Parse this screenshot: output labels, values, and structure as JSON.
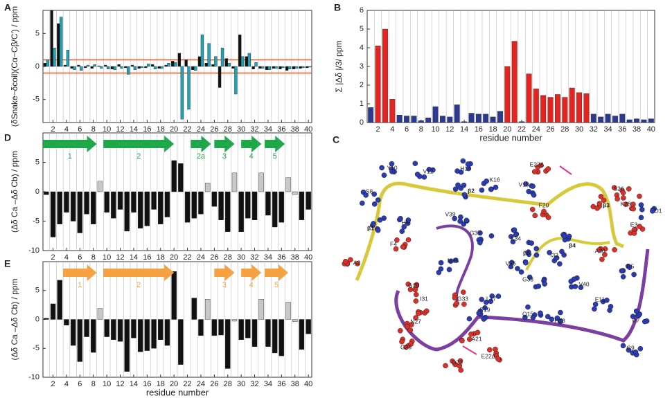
{
  "chart_data": [
    {
      "type": "bar",
      "panel_label": "A",
      "ylabel": "(δSnake−δcoil)(Cα−Cβ/C′) / ppm",
      "x": [
        1,
        2,
        3,
        4,
        5,
        6,
        7,
        8,
        9,
        10,
        11,
        12,
        13,
        14,
        15,
        16,
        17,
        18,
        19,
        20,
        21,
        22,
        23,
        24,
        25,
        26,
        27,
        28,
        29,
        30,
        31,
        32,
        33,
        34,
        35,
        36,
        37,
        38,
        39,
        40
      ],
      "xlim": [
        0.5,
        40.5
      ],
      "xticks": [
        2,
        4,
        6,
        8,
        10,
        12,
        14,
        16,
        18,
        20,
        22,
        24,
        26,
        28,
        30,
        32,
        34,
        36,
        38,
        40
      ],
      "ylim": [
        -8.5,
        8.5
      ],
      "yticks": [
        -5,
        0,
        5
      ],
      "reference_lines": {
        "values": [
          1,
          -1
        ],
        "color": "#e8612c"
      },
      "series": [
        {
          "color": "#111111",
          "values": [
            0.5,
            8.5,
            6.5,
            0.2,
            -0.3,
            0.2,
            -0.2,
            -0.3,
            0.1,
            0.2,
            -0.4,
            0.3,
            -0.2,
            0.2,
            -0.3,
            -0.2,
            0.3,
            -0.3,
            0.2,
            0.8,
            2,
            1,
            -0.5,
            1.5,
            0.5,
            0.3,
            -3.2,
            1.2,
            -0.3,
            4.8,
            1.5,
            -0.4,
            -0.3,
            -0.5,
            -0.3,
            -0.4,
            -0.6,
            -0.4,
            -0.3,
            -0.2
          ]
        },
        {
          "color": "#1fa3b5",
          "values": [
            1,
            2.8,
            7.5,
            2.5,
            -0.5,
            -0.6,
            0.2,
            0.3,
            -0.3,
            -0.4,
            -0.5,
            -0.3,
            -1.2,
            -0.5,
            -0.2,
            0.4,
            -0.4,
            -0.3,
            0.5,
            0.6,
            -8,
            -6.5,
            -0.6,
            4.8,
            3.5,
            1.5,
            2.8,
            0.5,
            -4.2,
            1.5,
            2,
            0.6,
            -0.3,
            -0.5,
            -0.3,
            -0.2,
            -0.4,
            -0.3,
            -0.2,
            -0.1
          ]
        }
      ]
    },
    {
      "type": "bar",
      "panel_label": "B",
      "ylabel": "Σ |Δδ |/3/ ppm",
      "xlabel": "residue number",
      "x": [
        1,
        2,
        3,
        4,
        5,
        6,
        7,
        8,
        9,
        10,
        11,
        12,
        13,
        14,
        15,
        16,
        17,
        18,
        19,
        20,
        21,
        22,
        23,
        24,
        25,
        26,
        27,
        28,
        29,
        30,
        31,
        32,
        33,
        34,
        35,
        36,
        37,
        38,
        39,
        40
      ],
      "xlim": [
        0.5,
        40.5
      ],
      "xticks": [
        2,
        4,
        6,
        8,
        10,
        12,
        14,
        16,
        18,
        20,
        22,
        24,
        26,
        28,
        30,
        32,
        34,
        36,
        38,
        40
      ],
      "ylim": [
        0,
        6
      ],
      "yticks": [
        0,
        1,
        2,
        3,
        4,
        5,
        6
      ],
      "values": [
        0.8,
        4.1,
        5.0,
        1.25,
        0.4,
        0.35,
        0.35,
        0.1,
        0.25,
        0.85,
        0.35,
        0.3,
        0.95,
        0.05,
        0.5,
        0.45,
        0.45,
        0.3,
        0.6,
        3.0,
        4.35,
        0.05,
        2.6,
        1.8,
        1.45,
        1.35,
        1.5,
        1.35,
        1.85,
        1.6,
        1.55,
        0.45,
        0.3,
        0.45,
        0.35,
        0.45,
        0.15,
        0.2,
        0.15,
        0.2
      ],
      "colors": [
        "#2b3990",
        "#e52421",
        "#e52421",
        "#e52421",
        "#2b3990",
        "#2b3990",
        "#2b3990",
        "#2b3990",
        "#2b3990",
        "#2b3990",
        "#2b3990",
        "#2b3990",
        "#2b3990",
        "#2b3990",
        "#2b3990",
        "#2b3990",
        "#2b3990",
        "#2b3990",
        "#2b3990",
        "#e52421",
        "#e52421",
        "#2b3990",
        "#e52421",
        "#e52421",
        "#e52421",
        "#e52421",
        "#e52421",
        "#e52421",
        "#e52421",
        "#e52421",
        "#e52421",
        "#2b3990",
        "#2b3990",
        "#2b3990",
        "#2b3990",
        "#2b3990",
        "#2b3990",
        "#2b3990",
        "#2b3990",
        "#2b3990"
      ]
    },
    {
      "type": "bar",
      "panel_label": "D",
      "ylabel": "(Δδ Ca –Δδ Cb) / ppm",
      "x": [
        1,
        2,
        3,
        4,
        5,
        6,
        7,
        8,
        9,
        10,
        11,
        12,
        13,
        14,
        15,
        16,
        17,
        18,
        19,
        20,
        21,
        22,
        23,
        24,
        25,
        26,
        27,
        28,
        29,
        30,
        31,
        32,
        33,
        34,
        35,
        36,
        37,
        38,
        39,
        40
      ],
      "xlim": [
        0.5,
        40.5
      ],
      "xticks": [
        2,
        4,
        6,
        8,
        10,
        12,
        14,
        16,
        18,
        20,
        22,
        24,
        26,
        28,
        30,
        32,
        34,
        36,
        38,
        40
      ],
      "ylim": [
        -10,
        10
      ],
      "yticks": [
        -10,
        -5,
        0,
        5
      ],
      "values": [
        -0.5,
        -7.7,
        -5.5,
        -3.5,
        -5.0,
        -7.0,
        -3.8,
        -5.5,
        1.8,
        -3.5,
        -4.5,
        -3.0,
        -6.7,
        -3.5,
        -6.2,
        -5.8,
        -3.0,
        -5.5,
        -4.3,
        5.3,
        4.8,
        -5.2,
        -4.5,
        -3.8,
        1.5,
        -2.5,
        -4.8,
        -6.8,
        3.2,
        -6.8,
        -4.5,
        -4.8,
        3.2,
        -4.0,
        -6.0,
        -5.2,
        2.4,
        -0.5,
        -4.8,
        -3.0
      ],
      "colors": [
        "#111111",
        "#111111",
        "#111111",
        "#111111",
        "#111111",
        "#111111",
        "#111111",
        "#111111",
        "#c8c8c8",
        "#111111",
        "#111111",
        "#111111",
        "#111111",
        "#111111",
        "#111111",
        "#111111",
        "#111111",
        "#111111",
        "#111111",
        "#111111",
        "#111111",
        "#111111",
        "#111111",
        "#111111",
        "#c8c8c8",
        "#111111",
        "#111111",
        "#111111",
        "#c8c8c8",
        "#111111",
        "#111111",
        "#111111",
        "#c8c8c8",
        "#111111",
        "#111111",
        "#111111",
        "#c8c8c8",
        "#c8c8c8",
        "#111111",
        "#111111"
      ],
      "strands": {
        "color": "#1ea84b",
        "items": [
          {
            "label": "1",
            "start": 0.5,
            "end": 8.5
          },
          {
            "label": "2",
            "start": 9.5,
            "end": 20
          },
          {
            "label": "2a",
            "start": 22.5,
            "end": 25.5
          },
          {
            "label": "3",
            "start": 26,
            "end": 29
          },
          {
            "label": "4",
            "start": 30,
            "end": 33
          },
          {
            "label": "5",
            "start": 33.5,
            "end": 36.5
          }
        ]
      }
    },
    {
      "type": "bar",
      "panel_label": "E",
      "ylabel": "(Δδ Ca –Δδ Cb) / ppm",
      "xlabel": "residue number",
      "x": [
        1,
        2,
        3,
        4,
        5,
        6,
        7,
        8,
        9,
        10,
        11,
        12,
        13,
        14,
        15,
        16,
        17,
        18,
        19,
        20,
        21,
        22,
        23,
        24,
        25,
        26,
        27,
        28,
        29,
        30,
        31,
        32,
        33,
        34,
        35,
        36,
        37,
        38,
        39,
        40
      ],
      "xlim": [
        0.5,
        40.5
      ],
      "xticks": [
        2,
        4,
        6,
        8,
        10,
        12,
        14,
        16,
        18,
        20,
        22,
        24,
        26,
        28,
        30,
        32,
        34,
        36,
        38,
        40
      ],
      "ylim": [
        -10,
        10
      ],
      "yticks": [
        -10,
        -5,
        0,
        5
      ],
      "values": [
        0.2,
        2.7,
        6.8,
        -1.0,
        -4.5,
        -7.3,
        -3.0,
        -5.7,
        1.9,
        -3.0,
        -3.5,
        -3.8,
        -9.0,
        -3.2,
        -5.6,
        -5.4,
        -5.0,
        -3.5,
        -4.5,
        8.3,
        -7.8,
        null,
        3.7,
        -2.8,
        3.5,
        -2.8,
        -2.7,
        -8.5,
        -0.3,
        -3.5,
        -3.2,
        -4.7,
        3.5,
        -4.7,
        -5.8,
        -6.3,
        3.0,
        -0.4,
        -5.2,
        -2.5
      ],
      "colors": [
        "#111111",
        "#111111",
        "#111111",
        "#111111",
        "#111111",
        "#111111",
        "#111111",
        "#111111",
        "#c8c8c8",
        "#111111",
        "#111111",
        "#111111",
        "#111111",
        "#111111",
        "#111111",
        "#111111",
        "#111111",
        "#111111",
        "#111111",
        "#111111",
        "#111111",
        "#111111",
        "#111111",
        "#111111",
        "#c8c8c8",
        "#111111",
        "#111111",
        "#111111",
        "#c8c8c8",
        "#111111",
        "#111111",
        "#111111",
        "#c8c8c8",
        "#111111",
        "#111111",
        "#111111",
        "#c8c8c8",
        "#c8c8c8",
        "#111111",
        "#111111"
      ],
      "strands": {
        "color": "#f6a243",
        "items": [
          {
            "label": "1",
            "start": 3.5,
            "end": 8.5
          },
          {
            "label": "2",
            "start": 9.5,
            "end": 20
          },
          {
            "label": "3",
            "start": 26,
            "end": 29
          },
          {
            "label": "4",
            "start": 30,
            "end": 33
          },
          {
            "label": "5",
            "start": 33.5,
            "end": 37
          }
        ]
      }
    }
  ],
  "structure": {
    "panel_label": "C",
    "labels": [
      "Y10",
      "V12",
      "H14",
      "K16",
      "V18",
      "E22Δ",
      "S8",
      "β2",
      "S26",
      "F20",
      "β3",
      "K28",
      "D1",
      "β1",
      "H6",
      "V39",
      "G37",
      "E3",
      "L34",
      "β4",
      "F4",
      "β5",
      "I32",
      "A30",
      "M35",
      "V36",
      "R5",
      "A2",
      "G38",
      "V40",
      "G29",
      "I31",
      "G33",
      "L17",
      "E11",
      "N27",
      "F19",
      "Q15",
      "H13",
      "D7",
      "A21",
      "G25",
      "G9",
      "D23",
      "E22Δ"
    ]
  }
}
